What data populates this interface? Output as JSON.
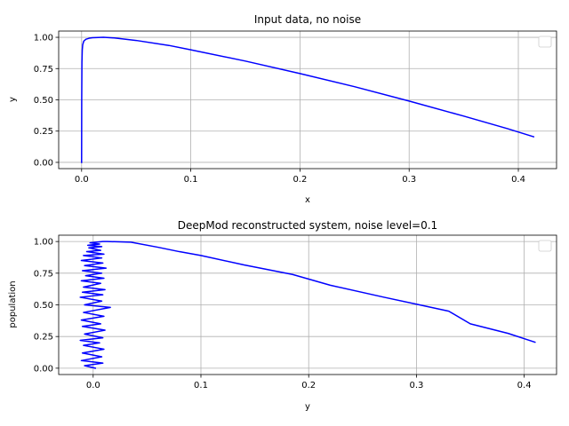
{
  "chart_data": [
    {
      "type": "line",
      "title": "Input data, no noise",
      "xlabel": "x",
      "ylabel": "y",
      "xlim": [
        -0.021,
        0.435
      ],
      "ylim": [
        -0.05,
        1.05
      ],
      "xticks": [
        0.0,
        0.1,
        0.2,
        0.3,
        0.4
      ],
      "xtick_labels": [
        "0.0",
        "0.1",
        "0.2",
        "0.3",
        "0.4"
      ],
      "yticks": [
        0.0,
        0.25,
        0.5,
        0.75,
        1.0
      ],
      "ytick_labels": [
        "0.00",
        "0.25",
        "0.50",
        "0.75",
        "1.00"
      ],
      "grid": true,
      "legend": "top-right (empty)",
      "color": "#0000ff",
      "series": [
        {
          "x": [
            0.0,
            0.0001,
            0.0003,
            0.0006,
            0.001,
            0.002,
            0.004,
            0.007,
            0.01,
            0.015,
            0.02,
            0.03,
            0.05,
            0.08,
            0.1,
            0.15,
            0.2,
            0.25,
            0.3,
            0.35,
            0.39,
            0.414
          ],
          "y": [
            0.0,
            0.5,
            0.8,
            0.9,
            0.94,
            0.97,
            0.985,
            0.993,
            0.997,
            0.999,
            1.0,
            0.995,
            0.975,
            0.935,
            0.9,
            0.81,
            0.71,
            0.605,
            0.49,
            0.37,
            0.27,
            0.205
          ]
        }
      ]
    },
    {
      "type": "line",
      "title": "DeepMod reconstructed system, noise level=0.1",
      "xlabel": "y",
      "ylabel": "population",
      "xlim": [
        -0.032,
        0.43
      ],
      "ylim": [
        -0.05,
        1.05
      ],
      "xticks": [
        0.0,
        0.1,
        0.2,
        0.3,
        0.4
      ],
      "xtick_labels": [
        "0.0",
        "0.1",
        "0.2",
        "0.3",
        "0.4"
      ],
      "yticks": [
        0.0,
        0.25,
        0.5,
        0.75,
        1.0
      ],
      "ytick_labels": [
        "0.00",
        "0.25",
        "0.50",
        "0.75",
        "1.00"
      ],
      "grid": true,
      "legend": "top-right (empty)",
      "color": "#0000ff",
      "series": [
        {
          "x": [
            0.002,
            -0.008,
            0.009,
            -0.011,
            0.008,
            -0.01,
            0.01,
            -0.009,
            0.006,
            -0.012,
            0.009,
            -0.008,
            0.011,
            -0.01,
            0.007,
            -0.011,
            0.01,
            -0.009,
            0.016,
            -0.008,
            0.008,
            -0.012,
            0.009,
            -0.01,
            0.011,
            -0.009,
            0.007,
            -0.011,
            0.01,
            -0.007,
            0.008,
            -0.01,
            0.012,
            -0.008,
            0.009,
            -0.011,
            0.008,
            -0.009,
            0.01,
            -0.006,
            0.007,
            -0.004,
            0.008,
            -0.005,
            0.006,
            -0.003,
            0.009,
            0.013,
            0.035,
            0.06,
            0.08,
            0.1,
            0.14,
            0.185,
            0.22,
            0.27,
            0.3,
            0.33,
            0.35,
            0.385,
            0.41
          ],
          "y": [
            0.0,
            0.02,
            0.04,
            0.06,
            0.09,
            0.12,
            0.15,
            0.18,
            0.2,
            0.22,
            0.24,
            0.27,
            0.3,
            0.33,
            0.35,
            0.38,
            0.41,
            0.44,
            0.48,
            0.5,
            0.53,
            0.56,
            0.58,
            0.6,
            0.62,
            0.64,
            0.67,
            0.69,
            0.71,
            0.73,
            0.75,
            0.77,
            0.79,
            0.81,
            0.83,
            0.85,
            0.87,
            0.89,
            0.9,
            0.92,
            0.93,
            0.95,
            0.96,
            0.97,
            0.98,
            0.99,
            1.0,
            1.0,
            0.995,
            0.955,
            0.92,
            0.89,
            0.815,
            0.74,
            0.655,
            0.56,
            0.505,
            0.45,
            0.35,
            0.275,
            0.205
          ]
        }
      ]
    }
  ]
}
